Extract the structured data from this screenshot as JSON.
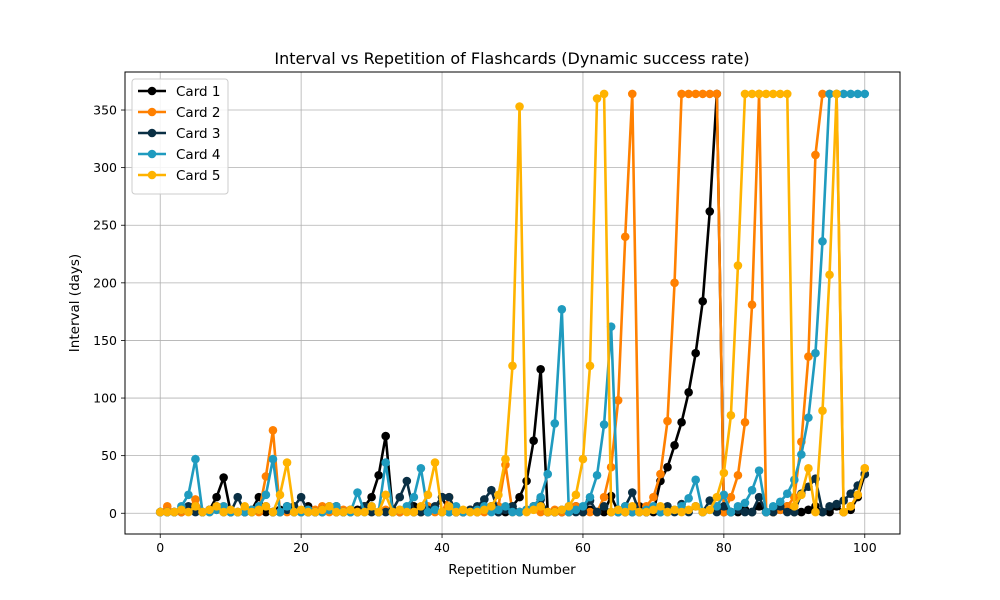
{
  "chart_data": {
    "type": "line",
    "title": "Interval vs Repetition of Flashcards (Dynamic success rate)",
    "xlabel": "Repetition Number",
    "ylabel": "Interval (days)",
    "xlim": [
      -5,
      105
    ],
    "ylim": [
      -18,
      383
    ],
    "xticks": [
      0,
      20,
      40,
      60,
      80,
      100
    ],
    "yticks": [
      0,
      50,
      100,
      150,
      200,
      250,
      300,
      350
    ],
    "grid": true,
    "legend_position": "top-left",
    "series": [
      {
        "name": "Card 1",
        "color": "#000000",
        "x": [
          0,
          1,
          2,
          3,
          4,
          5,
          6,
          7,
          8,
          9,
          10,
          11,
          12,
          13,
          14,
          15,
          16,
          17,
          18,
          19,
          20,
          21,
          22,
          23,
          24,
          25,
          26,
          27,
          28,
          29,
          30,
          31,
          32,
          33,
          34,
          35,
          36,
          37,
          38,
          39,
          40,
          41,
          42,
          43,
          44,
          45,
          46,
          47,
          48,
          49,
          50,
          51,
          52,
          53,
          54,
          55,
          56,
          57,
          58,
          59,
          60,
          61,
          62,
          63,
          64,
          65,
          66,
          67,
          68,
          69,
          70,
          71,
          72,
          73,
          74,
          75,
          76,
          77,
          78,
          79,
          80,
          81,
          82,
          83,
          84,
          85,
          86,
          87,
          88,
          89,
          90,
          91,
          92,
          93,
          94,
          95,
          96,
          97,
          98,
          99,
          100
        ],
        "y": [
          1,
          1,
          1,
          1,
          3,
          6,
          1,
          3,
          14,
          31,
          1,
          1,
          1,
          3,
          14,
          1,
          1,
          3,
          6,
          1,
          1,
          6,
          1,
          1,
          3,
          6,
          1,
          1,
          3,
          6,
          14,
          33,
          67,
          1,
          1,
          3,
          6,
          1,
          1,
          3,
          14,
          1,
          1,
          1,
          3,
          1,
          3,
          6,
          1,
          1,
          6,
          14,
          28,
          63,
          125,
          1,
          1,
          1,
          1,
          6,
          1,
          3,
          1,
          1,
          15,
          1,
          1,
          1,
          6,
          1,
          1,
          28,
          40,
          59,
          79,
          105,
          139,
          184,
          262,
          364,
          1,
          1,
          1,
          3,
          1,
          6,
          1,
          1,
          3,
          6,
          1,
          1,
          3,
          6,
          1,
          1,
          6,
          1,
          3,
          14,
          34
        ]
      },
      {
        "name": "Card 2",
        "color": "#ff8000",
        "x": [
          0,
          1,
          2,
          3,
          4,
          5,
          6,
          7,
          8,
          9,
          10,
          11,
          12,
          13,
          14,
          15,
          16,
          17,
          18,
          19,
          20,
          21,
          22,
          23,
          24,
          25,
          26,
          27,
          28,
          29,
          30,
          31,
          32,
          33,
          34,
          35,
          36,
          37,
          38,
          39,
          40,
          41,
          42,
          43,
          44,
          45,
          46,
          47,
          48,
          49,
          50,
          51,
          52,
          53,
          54,
          55,
          56,
          57,
          58,
          59,
          60,
          61,
          62,
          63,
          64,
          65,
          66,
          67,
          68,
          69,
          70,
          71,
          72,
          73,
          74,
          75,
          76,
          77,
          78,
          79,
          80,
          81,
          82,
          83,
          84,
          85,
          86,
          87,
          88,
          89,
          90,
          91,
          92,
          93,
          94,
          95,
          96,
          97,
          98,
          99,
          100
        ],
        "y": [
          1,
          6,
          1,
          1,
          3,
          12,
          1,
          1,
          3,
          6,
          1,
          1,
          1,
          3,
          1,
          32,
          72,
          1,
          1,
          3,
          1,
          1,
          3,
          6,
          1,
          1,
          3,
          1,
          1,
          6,
          1,
          1,
          3,
          1,
          1,
          3,
          1,
          1,
          6,
          1,
          1,
          14,
          1,
          1,
          3,
          1,
          1,
          3,
          6,
          42,
          1,
          1,
          3,
          6,
          1,
          1,
          3,
          1,
          1,
          6,
          1,
          1,
          1,
          14,
          40,
          98,
          240,
          364,
          1,
          6,
          14,
          34,
          80,
          200,
          364,
          364,
          364,
          364,
          364,
          364,
          1,
          14,
          33,
          79,
          181,
          364,
          1,
          1,
          3,
          6,
          14,
          62,
          136,
          311,
          364,
          364,
          364,
          1,
          6,
          16,
          39
        ]
      },
      {
        "name": "Card 3",
        "color": "#0a2f44",
        "x": [
          0,
          1,
          2,
          3,
          4,
          5,
          6,
          7,
          8,
          9,
          10,
          11,
          12,
          13,
          14,
          15,
          16,
          17,
          18,
          19,
          20,
          21,
          22,
          23,
          24,
          25,
          26,
          27,
          28,
          29,
          30,
          31,
          32,
          33,
          34,
          35,
          36,
          37,
          38,
          39,
          40,
          41,
          42,
          43,
          44,
          45,
          46,
          47,
          48,
          49,
          50,
          51,
          52,
          53,
          54,
          55,
          56,
          57,
          58,
          59,
          60,
          61,
          62,
          63,
          64,
          65,
          66,
          67,
          68,
          69,
          70,
          71,
          72,
          73,
          74,
          75,
          76,
          77,
          78,
          79,
          80,
          81,
          82,
          83,
          84,
          85,
          86,
          87,
          88,
          89,
          90,
          91,
          92,
          93,
          94,
          95,
          96,
          97,
          98,
          99,
          100
        ],
        "y": [
          1,
          1,
          1,
          3,
          6,
          1,
          1,
          3,
          6,
          1,
          1,
          14,
          1,
          1,
          3,
          6,
          1,
          1,
          3,
          6,
          14,
          1,
          1,
          3,
          6,
          1,
          1,
          3,
          1,
          6,
          1,
          1,
          1,
          3,
          14,
          28,
          1,
          1,
          3,
          6,
          14,
          14,
          1,
          1,
          3,
          6,
          12,
          20,
          1,
          3,
          6,
          1,
          3,
          6,
          12,
          1,
          1,
          3,
          6,
          1,
          1,
          11,
          1,
          6,
          1,
          3,
          6,
          18,
          1,
          1,
          3,
          1,
          6,
          1,
          8,
          1,
          6,
          1,
          11,
          1,
          6,
          1,
          3,
          1,
          1,
          14,
          1,
          1,
          6,
          1,
          1,
          17,
          23,
          30,
          1,
          6,
          8,
          11,
          17,
          24,
          34
        ]
      },
      {
        "name": "Card 4",
        "color": "#1f9bbf",
        "x": [
          0,
          1,
          2,
          3,
          4,
          5,
          6,
          7,
          8,
          9,
          10,
          11,
          12,
          13,
          14,
          15,
          16,
          17,
          18,
          19,
          20,
          21,
          22,
          23,
          24,
          25,
          26,
          27,
          28,
          29,
          30,
          31,
          32,
          33,
          34,
          35,
          36,
          37,
          38,
          39,
          40,
          41,
          42,
          43,
          44,
          45,
          46,
          47,
          48,
          49,
          50,
          51,
          52,
          53,
          54,
          55,
          56,
          57,
          58,
          59,
          60,
          61,
          62,
          63,
          64,
          65,
          66,
          67,
          68,
          69,
          70,
          71,
          72,
          73,
          74,
          75,
          76,
          77,
          78,
          79,
          80,
          81,
          82,
          83,
          84,
          85,
          86,
          87,
          88,
          89,
          90,
          91,
          92,
          93,
          94,
          95,
          96,
          97,
          98,
          99,
          100
        ],
        "y": [
          1,
          1,
          1,
          6,
          16,
          47,
          1,
          1,
          3,
          6,
          1,
          1,
          1,
          3,
          6,
          16,
          47,
          1,
          6,
          1,
          1,
          3,
          1,
          1,
          3,
          6,
          1,
          1,
          18,
          1,
          6,
          1,
          44,
          1,
          3,
          6,
          14,
          39,
          1,
          3,
          1,
          1,
          6,
          1,
          1,
          3,
          6,
          1,
          3,
          6,
          1,
          1,
          3,
          6,
          14,
          34,
          78,
          177,
          1,
          3,
          6,
          14,
          33,
          77,
          162,
          1,
          6,
          1,
          1,
          3,
          6,
          1,
          1,
          3,
          6,
          13,
          29,
          1,
          3,
          6,
          16,
          1,
          6,
          9,
          20,
          37,
          1,
          6,
          10,
          17,
          29,
          51,
          83,
          139,
          236,
          364,
          364,
          364,
          364,
          364,
          364
        ]
      },
      {
        "name": "Card 5",
        "color": "#ffb300",
        "x": [
          0,
          1,
          2,
          3,
          4,
          5,
          6,
          7,
          8,
          9,
          10,
          11,
          12,
          13,
          14,
          15,
          16,
          17,
          18,
          19,
          20,
          21,
          22,
          23,
          24,
          25,
          26,
          27,
          28,
          29,
          30,
          31,
          32,
          33,
          34,
          35,
          36,
          37,
          38,
          39,
          40,
          41,
          42,
          43,
          44,
          45,
          46,
          47,
          48,
          49,
          50,
          51,
          52,
          53,
          54,
          55,
          56,
          57,
          58,
          59,
          60,
          61,
          62,
          63,
          64,
          65,
          66,
          67,
          68,
          69,
          70,
          71,
          72,
          73,
          74,
          75,
          76,
          77,
          78,
          79,
          80,
          81,
          82,
          83,
          84,
          85,
          86,
          87,
          88,
          89,
          90,
          91,
          92,
          93,
          94,
          95,
          96,
          97,
          98,
          99,
          100
        ],
        "y": [
          1,
          1,
          1,
          3,
          1,
          6,
          1,
          3,
          6,
          1,
          3,
          1,
          6,
          1,
          3,
          6,
          1,
          16,
          44,
          1,
          3,
          1,
          1,
          3,
          6,
          1,
          1,
          3,
          1,
          1,
          6,
          1,
          16,
          1,
          3,
          1,
          1,
          6,
          16,
          44,
          1,
          6,
          1,
          3,
          1,
          1,
          3,
          6,
          16,
          47,
          128,
          353,
          1,
          3,
          6,
          1,
          1,
          3,
          6,
          16,
          47,
          128,
          360,
          364,
          1,
          3,
          1,
          6,
          1,
          1,
          3,
          6,
          1,
          3,
          1,
          3,
          6,
          1,
          3,
          14,
          35,
          85,
          215,
          364,
          364,
          364,
          364,
          364,
          364,
          364,
          6,
          16,
          39,
          1,
          89,
          207,
          364,
          1,
          6,
          16,
          39
        ]
      }
    ]
  }
}
